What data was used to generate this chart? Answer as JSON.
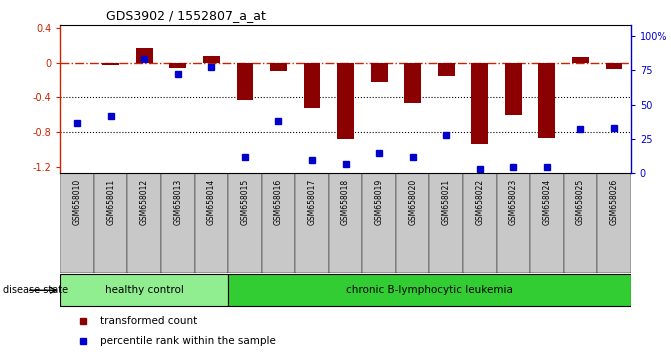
{
  "title": "GDS3902 / 1552807_a_at",
  "samples": [
    "GSM658010",
    "GSM658011",
    "GSM658012",
    "GSM658013",
    "GSM658014",
    "GSM658015",
    "GSM658016",
    "GSM658017",
    "GSM658018",
    "GSM658019",
    "GSM658020",
    "GSM658021",
    "GSM658022",
    "GSM658023",
    "GSM658024",
    "GSM658025",
    "GSM658026"
  ],
  "red_bars": [
    0.0,
    -0.02,
    0.17,
    -0.06,
    0.08,
    -0.43,
    -0.1,
    -0.52,
    -0.88,
    -0.22,
    -0.46,
    -0.15,
    -0.94,
    -0.6,
    -0.87,
    0.07,
    -0.07
  ],
  "blue_dots_pct": [
    37,
    42,
    83,
    72,
    77,
    12,
    38,
    10,
    7,
    15,
    12,
    28,
    3,
    5,
    5,
    32,
    33
  ],
  "healthy_control_count": 5,
  "ylim_left": [
    -1.28,
    0.44
  ],
  "ylim_right": [
    0,
    108
  ],
  "right_ticks": [
    0,
    25,
    50,
    75,
    100
  ],
  "right_tick_labels": [
    "0",
    "25",
    "50",
    "75",
    "100%"
  ],
  "left_ticks": [
    -1.2,
    -0.8,
    -0.4,
    0.0,
    0.4
  ],
  "left_tick_labels": [
    "-1.2",
    "-0.8",
    "-0.4",
    "0",
    "0.4"
  ],
  "dotted_lines": [
    -0.4,
    -0.8
  ],
  "bar_color": "#8B0000",
  "dot_color": "#0000CD",
  "red_line_color": "#CC2200",
  "healthy_label": "healthy control",
  "disease_label": "chronic B-lymphocytic leukemia",
  "disease_state_label": "disease state",
  "legend_red": "transformed count",
  "legend_blue": "percentile rank within the sample",
  "healthy_bg": "#90EE90",
  "disease_bg": "#32CD32",
  "label_bg": "#C8C8C8",
  "bar_width": 0.5,
  "marker_size": 5
}
